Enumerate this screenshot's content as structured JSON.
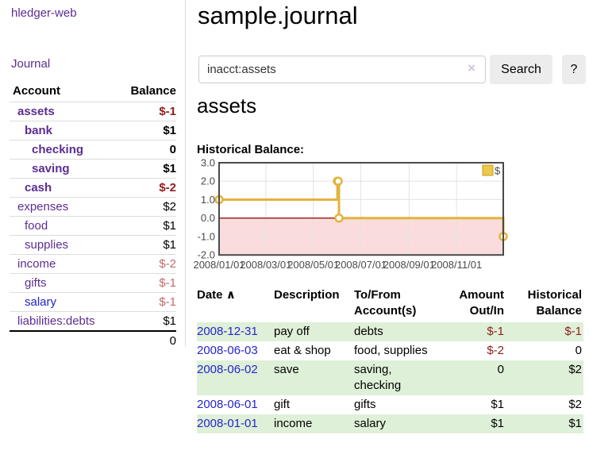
{
  "app": {
    "brand": "hledger-web",
    "journal_link": "Journal"
  },
  "sidebar": {
    "header": {
      "account": "Account",
      "balance": "Balance"
    },
    "accounts": [
      {
        "name": "assets",
        "balance": "$-1",
        "depth": 1,
        "bold": true
      },
      {
        "name": "bank",
        "balance": "$1",
        "depth": 2,
        "bold": true
      },
      {
        "name": "checking",
        "balance": "0",
        "depth": 3,
        "bold": true
      },
      {
        "name": "saving",
        "balance": "$1",
        "depth": 3,
        "bold": true
      },
      {
        "name": "cash",
        "balance": "$-2",
        "depth": 2,
        "bold": true
      },
      {
        "name": "expenses",
        "balance": "$2",
        "depth": 1,
        "bold": false
      },
      {
        "name": "food",
        "balance": "$1",
        "depth": 2,
        "bold": false
      },
      {
        "name": "supplies",
        "balance": "$1",
        "depth": 2,
        "bold": false
      },
      {
        "name": "income",
        "balance": "$-2",
        "depth": 1,
        "bold": false
      },
      {
        "name": "gifts",
        "balance": "$-1",
        "depth": 2,
        "bold": false
      },
      {
        "name": "salary",
        "balance": "$-1",
        "depth": 2,
        "bold": false,
        "link_color": "blue"
      },
      {
        "name": "liabilities:debts",
        "balance": "$1",
        "depth": 1,
        "bold": false
      }
    ],
    "total": "0"
  },
  "main": {
    "title": "sample.journal",
    "search": {
      "value": "inacct:assets",
      "clear_icon": "×",
      "button": "Search",
      "help": "?"
    },
    "account_heading": "assets",
    "chart_label": "Historical Balance:"
  },
  "chart_data": {
    "type": "line",
    "step": true,
    "title": "Historical Balance",
    "series": [
      {
        "name": "$",
        "x": [
          "2008-01-01",
          "2008-06-01",
          "2008-06-02",
          "2008-06-03",
          "2008-12-31"
        ],
        "values": [
          1,
          2,
          2,
          0,
          -1
        ]
      }
    ],
    "x_range": [
      "2008-01-01",
      "2008-12-31"
    ],
    "ylim": [
      -2,
      3
    ],
    "ytick_labels": [
      "3.0",
      "2.0",
      "1.0",
      "0.0",
      "-1.0",
      "-2.0"
    ],
    "yticks": [
      3,
      2,
      1,
      0,
      -1,
      -2
    ],
    "xticks": [
      "2008-01-01",
      "2008-03-01",
      "2008-05-01",
      "2008-07-01",
      "2008-09-01",
      "2008-11-01"
    ],
    "xtick_labels": [
      "2008/01/01",
      "2008/03/01",
      "2008/05/01",
      "2008/07/01",
      "2008/09/01",
      "2008/11/01"
    ],
    "legend": {
      "label": "$",
      "position": "top-right"
    },
    "grid": true,
    "colors": {
      "line": "#e2b33c",
      "marker_fill": "#ffffff",
      "negative_region": "#fbdcdc",
      "zero_line": "#8b0000",
      "plot_border": "#4a4a4a",
      "grid": "#e3e3e3",
      "axis_text": "#4a4a4a",
      "legend_fill": "#ecc84d",
      "legend_border": "#c99b1d"
    }
  },
  "register": {
    "headers": {
      "date": "Date",
      "date_sort": "∧",
      "description": "Description",
      "account_1": "To/From",
      "account_2": "Account(s)",
      "amount_1": "Amount",
      "amount_2": "Out/In",
      "balance_1": "Historical",
      "balance_2": "Balance"
    },
    "rows": [
      {
        "date": "2008-12-31",
        "description": "pay off",
        "accounts": "debts",
        "amount": "$-1",
        "balance": "$-1"
      },
      {
        "date": "2008-06-03",
        "description": "eat & shop",
        "accounts": "food, supplies",
        "amount": "$-2",
        "balance": "0"
      },
      {
        "date": "2008-06-02",
        "description": "save",
        "accounts": "saving, checking",
        "amount": "0",
        "balance": "$2"
      },
      {
        "date": "2008-06-01",
        "description": "gift",
        "accounts": "gifts",
        "amount": "$1",
        "balance": "$2"
      },
      {
        "date": "2008-01-01",
        "description": "income",
        "accounts": "salary",
        "amount": "$1",
        "balance": "$1"
      }
    ]
  }
}
